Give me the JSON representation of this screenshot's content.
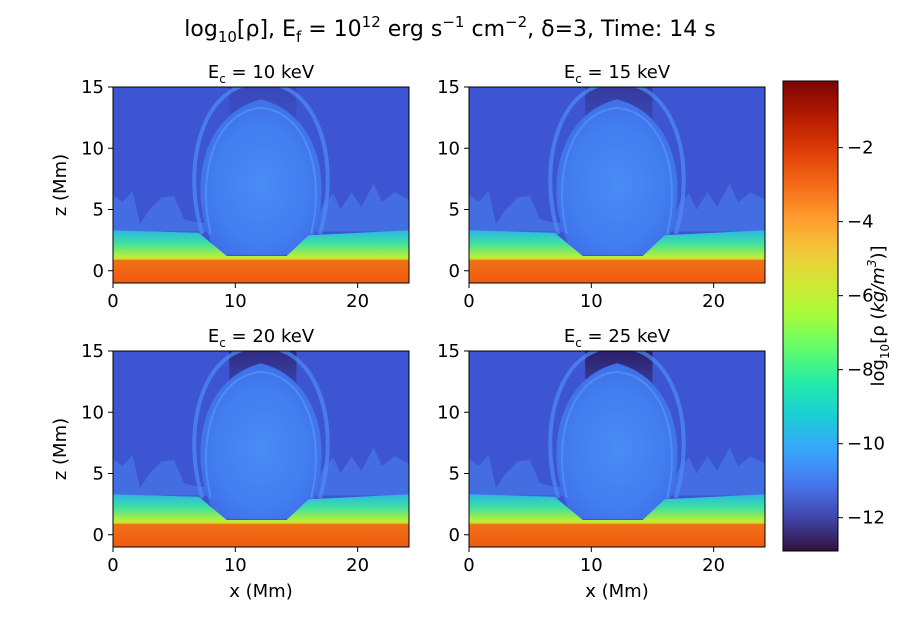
{
  "chart_data": {
    "type": "heatmap",
    "title": "log₁₀[ρ], E",
    "title_parts": {
      "prefix": "log",
      "prefix_sub": "10",
      "mid": "[ρ], E",
      "mid_sub": "f",
      "eq": " = 10",
      "eq_sup": "12",
      "units": " erg s",
      "units_sup1": "−1",
      "units2": " cm",
      "units_sup2": "−2",
      "tail": ", δ=3, Time: 14 s"
    },
    "panels": [
      {
        "title": "E",
        "title_sub": "c",
        "title_rest": " = 10 keV",
        "ec_keV": 10
      },
      {
        "title": "E",
        "title_sub": "c",
        "title_rest": " = 15 keV",
        "ec_keV": 15
      },
      {
        "title": "E",
        "title_sub": "c",
        "title_rest": " = 20 keV",
        "ec_keV": 20
      },
      {
        "title": "E",
        "title_sub": "c",
        "title_rest": " = 25 keV",
        "ec_keV": 25
      }
    ],
    "xlabel": "x (Mm)",
    "ylabel": "z (Mm)",
    "xlim": [
      0,
      24.2
    ],
    "ylim": [
      -1,
      15
    ],
    "xticks": [
      0,
      10,
      20
    ],
    "xtick_labels": [
      "0",
      "10",
      "20"
    ],
    "yticks": [
      0,
      5,
      10,
      15
    ],
    "ytick_labels": [
      "0",
      "5",
      "10",
      "15"
    ],
    "colorbar": {
      "label_prefix": "log",
      "label_sub": "10",
      "label_mid": "[ρ (",
      "label_unit": "kg/m",
      "label_unit_sup": "3",
      "label_end": ")]",
      "range": [
        -12.9,
        -0.2
      ],
      "ticks": [
        -2,
        -4,
        -6,
        -8,
        -10,
        -12
      ],
      "tick_labels": [
        "−2",
        "−4",
        "−6",
        "−8",
        "−10",
        "−12"
      ],
      "colormap": "turbo"
    },
    "colors": {
      "corona": "#3d55d2",
      "cavity": "#3f83f2",
      "chromosphere": "#41d9a0",
      "photosphere": "#f06010"
    }
  }
}
